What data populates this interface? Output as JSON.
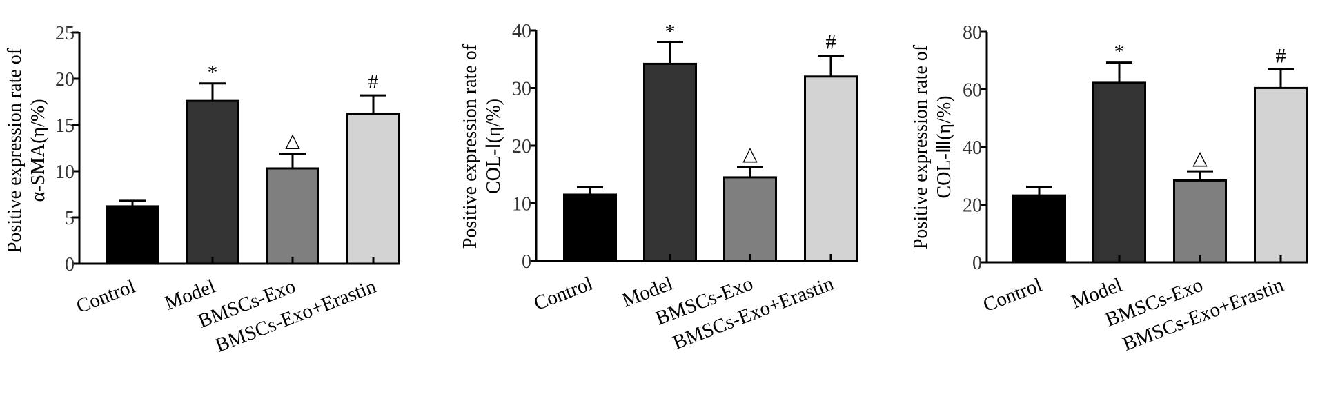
{
  "chart_data": [
    {
      "type": "bar",
      "ylabel_lines": [
        "Positive expression rate of",
        "α-SMA(η/%)"
      ],
      "categories": [
        "Control",
        "Model",
        "BMSCs-Exo",
        "BMSCs-Exo+Erastin"
      ],
      "values": [
        6.2,
        17.6,
        10.3,
        16.2
      ],
      "errors": [
        0.6,
        1.9,
        1.6,
        2.0
      ],
      "significance": [
        "",
        "*",
        "△",
        "#"
      ],
      "ylim": [
        0,
        25
      ],
      "yticks": [
        "0",
        "5",
        "10",
        "15",
        "20",
        "25"
      ]
    },
    {
      "type": "bar",
      "ylabel_lines": [
        "Positive expression rate of",
        "COL-Ⅰ(η/%)"
      ],
      "categories": [
        "Control",
        "Model",
        "BMSCs-Exo",
        "BMSCs-Exo+Erastin"
      ],
      "values": [
        11.5,
        34.2,
        14.5,
        32.0
      ],
      "errors": [
        1.3,
        3.7,
        1.8,
        3.6
      ],
      "significance": [
        "",
        "*",
        "△",
        "#"
      ],
      "ylim": [
        0,
        40
      ],
      "yticks": [
        "0",
        "10",
        "20",
        "30",
        "40"
      ]
    },
    {
      "type": "bar",
      "ylabel_lines": [
        "Positive expression rate of",
        "COL-Ⅲ(η/%)"
      ],
      "categories": [
        "Control",
        "Model",
        "BMSCs-Exo",
        "BMSCs-Exo+Erastin"
      ],
      "values": [
        23.2,
        62.3,
        28.4,
        60.5
      ],
      "errors": [
        3.0,
        7.0,
        3.2,
        6.5
      ],
      "significance": [
        "",
        "*",
        "△",
        "#"
      ],
      "ylim": [
        0,
        80
      ],
      "yticks": [
        "0",
        "20",
        "40",
        "60",
        "80"
      ]
    }
  ],
  "bar_colors": [
    "#000000",
    "#333333",
    "#7f7f7f",
    "#d3d3d3"
  ]
}
